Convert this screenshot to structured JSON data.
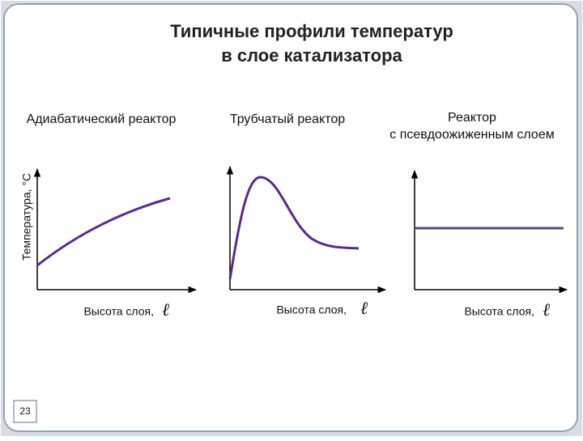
{
  "header": {
    "title_lines": [
      "Типичные профили температур",
      "в слое катализатора"
    ]
  },
  "panels": [
    {
      "title_lines": [
        "Адиабатический реактор"
      ],
      "x_label": "Высота слоя,",
      "x_symbol": "ℓ"
    },
    {
      "title_lines": [
        "Трубчатый реактор"
      ],
      "x_label": "Высота слоя,",
      "x_symbol": "ℓ"
    },
    {
      "title_lines": [
        "Реактор",
        "с псевдоожиженным слоем"
      ],
      "x_label": "Высота слоя,",
      "x_symbol": "ℓ"
    }
  ],
  "y_label": "Температура, °C",
  "page_number": "23"
}
